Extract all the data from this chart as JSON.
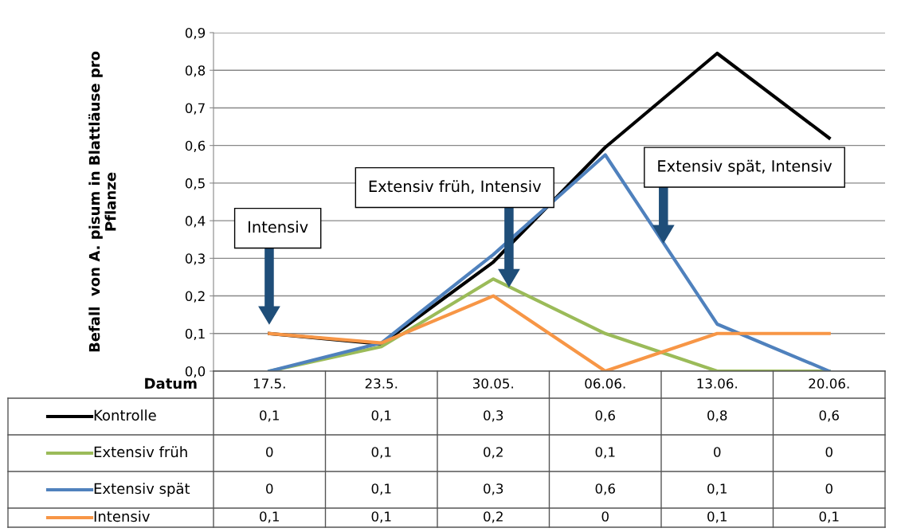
{
  "chart_data": {
    "type": "line",
    "ylabel": "Befall  von A. pisum in Blattläuse pro Pflanze",
    "xlabel": "Datum",
    "categories": [
      "17.5.",
      "23.5.",
      "30.05.",
      "06.06.",
      "13.06.",
      "20.06."
    ],
    "series": [
      {
        "name": "Kontrolle",
        "color": "#000000",
        "values": [
          0.1,
          0.072,
          0.29,
          0.595,
          0.845,
          0.62
        ],
        "value_labels": [
          "0,1",
          "0,1",
          "0,3",
          "0,6",
          "0,8",
          "0,6"
        ]
      },
      {
        "name": "Extensiv früh",
        "color": "#9bbb59",
        "values": [
          0,
          0.065,
          0.245,
          0.1,
          0,
          0
        ],
        "value_labels": [
          "0",
          "0,1",
          "0,2",
          "0,1",
          "0",
          "0"
        ]
      },
      {
        "name": "Extensiv spät",
        "color": "#4f81bd",
        "values": [
          0,
          0.075,
          0.31,
          0.575,
          0.125,
          0
        ],
        "value_labels": [
          "0",
          "0,1",
          "0,3",
          "0,6",
          "0,1",
          "0"
        ]
      },
      {
        "name": "Intensiv",
        "color": "#f79646",
        "values": [
          0.1,
          0.075,
          0.2,
          0,
          0.1,
          0.1
        ],
        "value_labels": [
          "0,1",
          "0,1",
          "0,2",
          "0",
          "0,1",
          "0,1"
        ]
      }
    ],
    "ylim": [
      0,
      0.9
    ],
    "yticks": [
      {
        "value": 0,
        "label": "0,0"
      },
      {
        "value": 0.1,
        "label": "0,1"
      },
      {
        "value": 0.2,
        "label": "0,2"
      },
      {
        "value": 0.3,
        "label": "0,3"
      },
      {
        "value": 0.4,
        "label": "0,4"
      },
      {
        "value": 0.5,
        "label": "0,5"
      },
      {
        "value": 0.6,
        "label": "0,6"
      },
      {
        "value": 0.7,
        "label": "0,7"
      },
      {
        "value": 0.8,
        "label": "0,8"
      },
      {
        "value": 0.9,
        "label": "0,9"
      }
    ],
    "grid": "y",
    "legend": "bottom",
    "marker": "none",
    "line_style": "solid",
    "annotations": [
      "Intensiv",
      "Extensiv früh, Intensiv",
      "Extensiv spät, Intensiv"
    ]
  }
}
